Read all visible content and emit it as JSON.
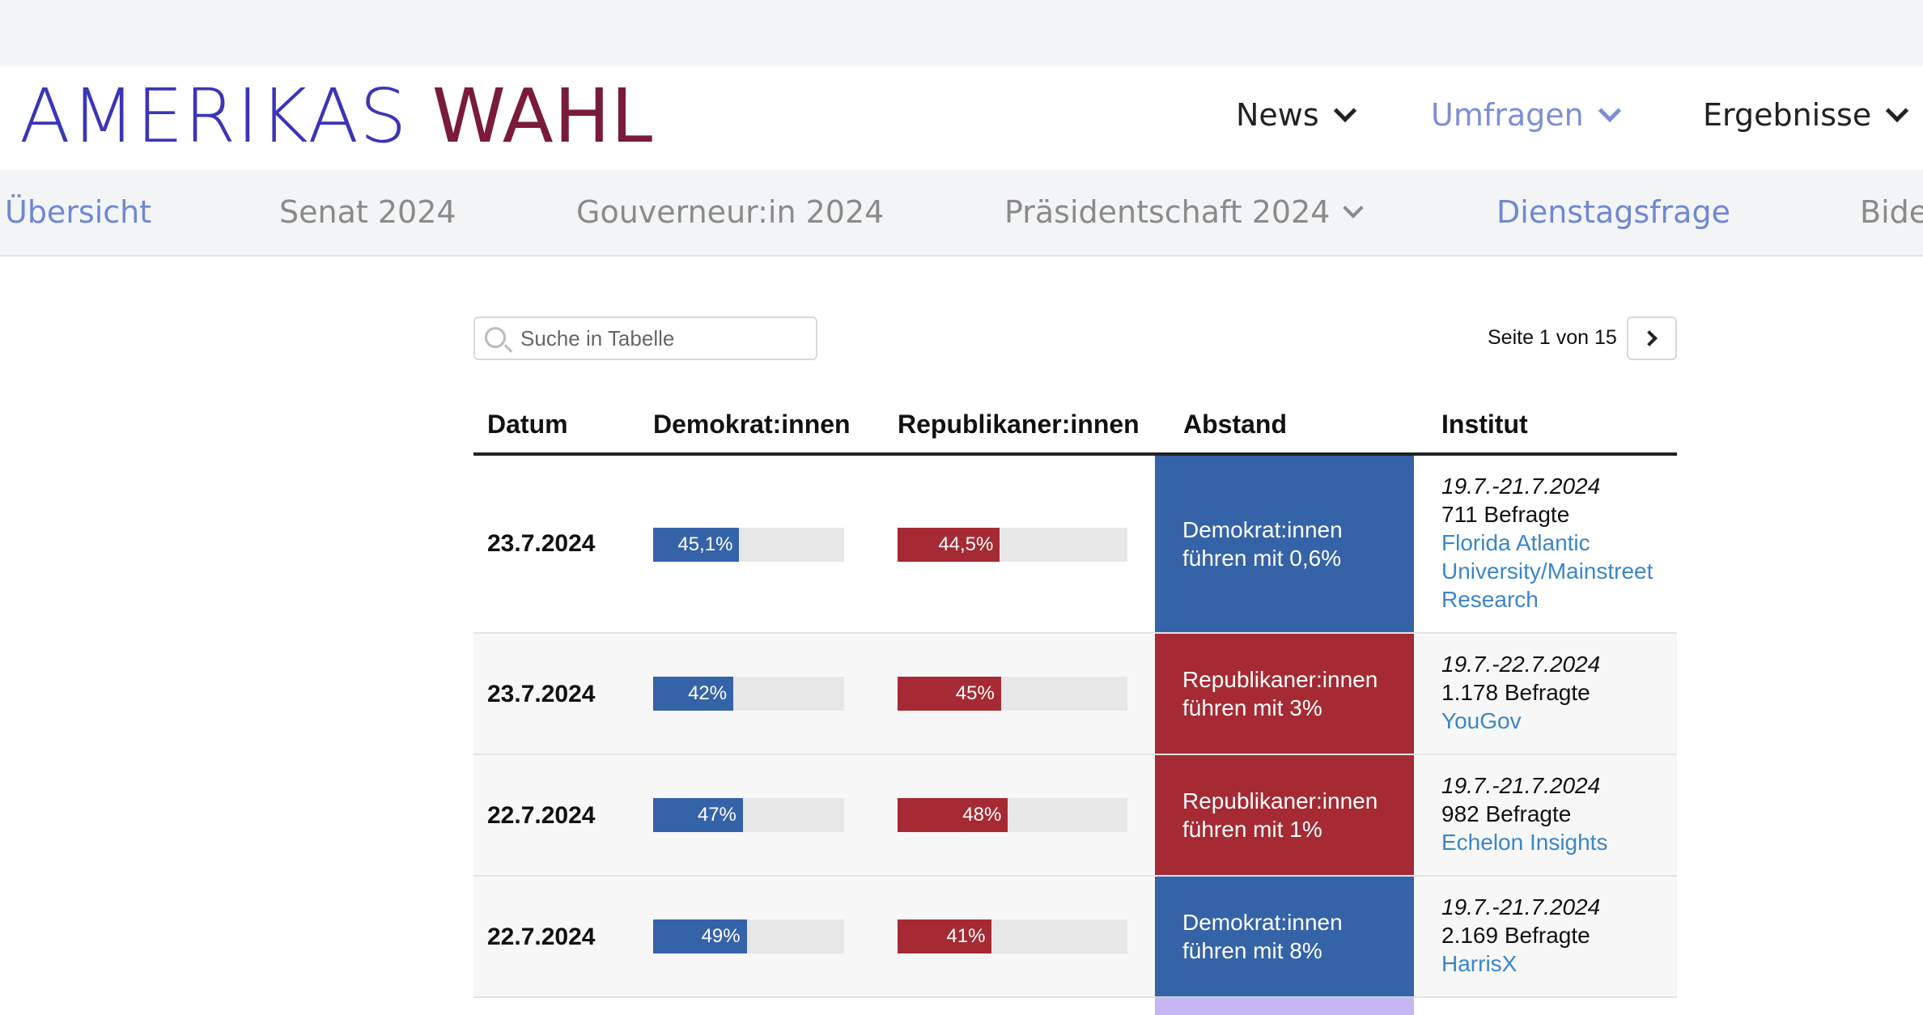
{
  "logo": {
    "part1": "AMERIKAS",
    "part2": "WAHL"
  },
  "main_nav": [
    {
      "label": "News",
      "active": false
    },
    {
      "label": "Umfragen",
      "active": true
    },
    {
      "label": "Ergebnisse",
      "active": false
    }
  ],
  "sub_nav": [
    {
      "label": "Übersicht",
      "active": true
    },
    {
      "label": "Senat 2024",
      "active": false
    },
    {
      "label": "Gouverneur:in 2024",
      "active": false
    },
    {
      "label": "Präsidentschaft 2024",
      "active": false,
      "has_dropdown": true
    },
    {
      "label": "Dienstagsfrage",
      "active": true
    },
    {
      "label": "Bide",
      "active": false
    }
  ],
  "search": {
    "placeholder": "Suche in Tabelle",
    "value": ""
  },
  "pager": {
    "text": "Seite 1 von 15"
  },
  "table": {
    "headers": [
      "Datum",
      "Demokrat:innen",
      "Republikaner:innen",
      "Abstand",
      "Institut"
    ],
    "rows": [
      {
        "date": "23.7.2024",
        "dem_label": "45,1%",
        "dem_value": 45.1,
        "rep_label": "44,5%",
        "rep_value": 44.5,
        "leader": "dem",
        "gap_line1": "Demokrat:innen",
        "gap_line2": "führen mit 0,6%",
        "period": "19.7.-21.7.2024",
        "sample": "711 Befragte",
        "source_lines": [
          "Florida Atlantic",
          "University/Mainstreet",
          "Research"
        ]
      },
      {
        "date": "23.7.2024",
        "dem_label": "42%",
        "dem_value": 42,
        "rep_label": "45%",
        "rep_value": 45,
        "leader": "rep",
        "gap_line1": "Republikaner:innen",
        "gap_line2": "führen mit 3%",
        "period": "19.7.-22.7.2024",
        "sample": "1.178 Befragte",
        "source_lines": [
          "YouGov"
        ]
      },
      {
        "date": "22.7.2024",
        "dem_label": "47%",
        "dem_value": 47,
        "rep_label": "48%",
        "rep_value": 48,
        "leader": "rep",
        "gap_line1": "Republikaner:innen",
        "gap_line2": "führen mit 1%",
        "period": "19.7.-21.7.2024",
        "sample": "982 Befragte",
        "source_lines": [
          "Echelon Insights"
        ]
      },
      {
        "date": "22.7.2024",
        "dem_label": "49%",
        "dem_value": 49,
        "rep_label": "41%",
        "rep_value": 41,
        "leader": "dem",
        "gap_line1": "Demokrat:innen",
        "gap_line2": "führen mit 8%",
        "period": "19.7.-21.7.2024",
        "sample": "2.169 Befragte",
        "source_lines": [
          "HarrisX"
        ]
      }
    ]
  },
  "colors": {
    "dem": "#3563a8",
    "rep": "#a52a33",
    "accent": "#6f88d2"
  }
}
